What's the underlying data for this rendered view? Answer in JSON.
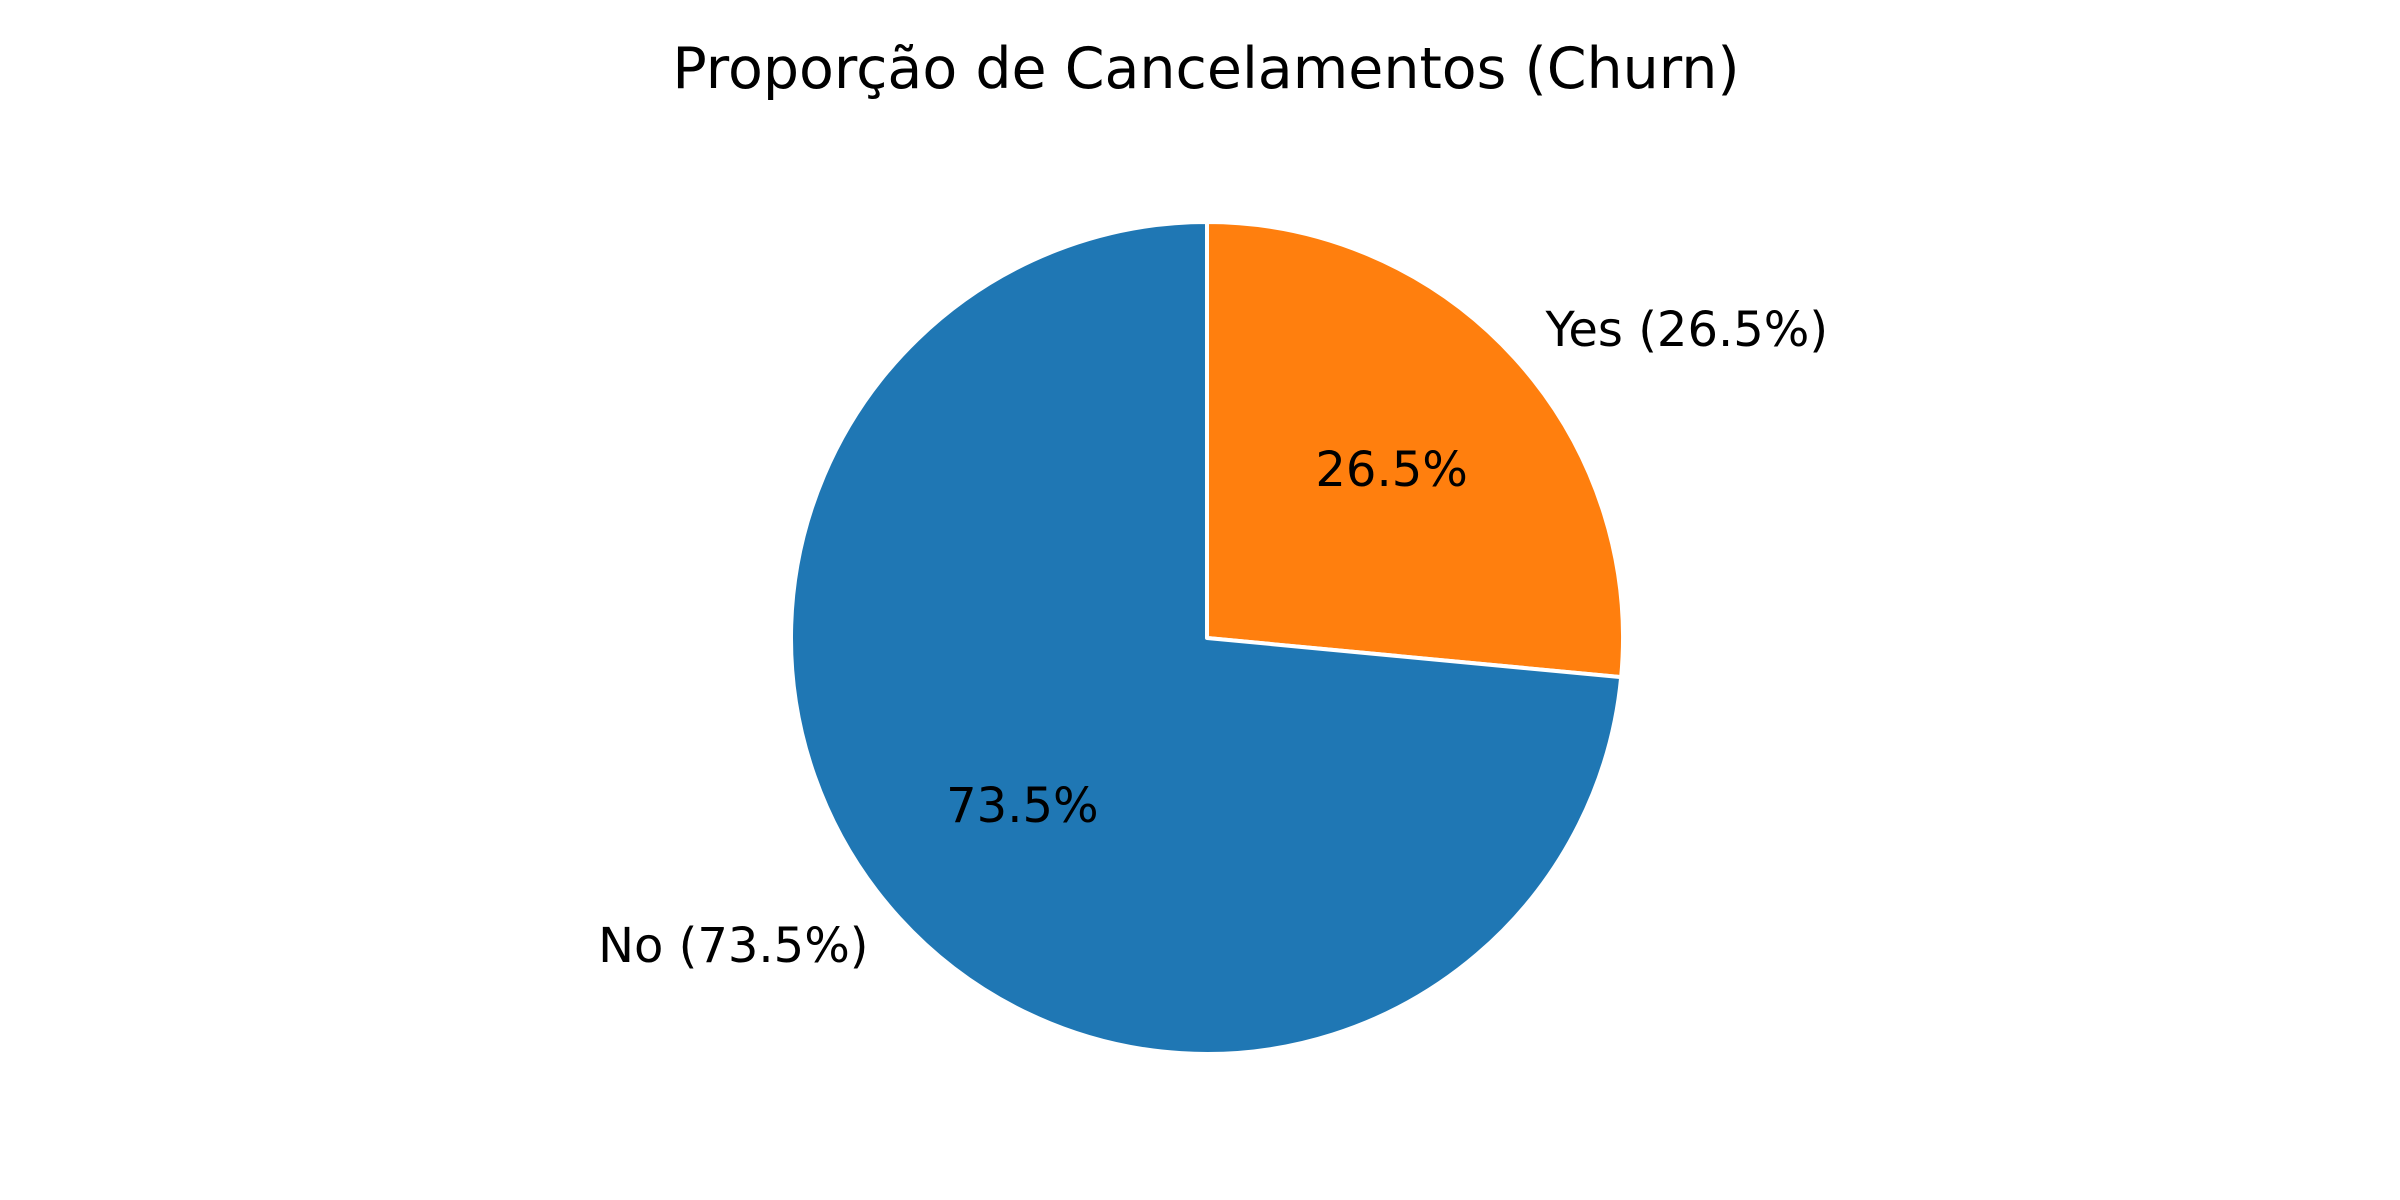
{
  "chart_data": {
    "type": "pie",
    "title": "Proporção de Cancelamentos (Churn)",
    "start_angle_deg": 90,
    "direction": "clockwise",
    "slices": [
      {
        "label": "Yes (26.5%)",
        "category": "Yes",
        "value": 26.5,
        "pct_text": "26.5%",
        "color": "#ff7f0e"
      },
      {
        "label": "No (73.5%)",
        "category": "No",
        "value": 73.5,
        "pct_text": "73.5%",
        "color": "#1f77b4"
      }
    ],
    "edge_color": "#ffffff"
  }
}
